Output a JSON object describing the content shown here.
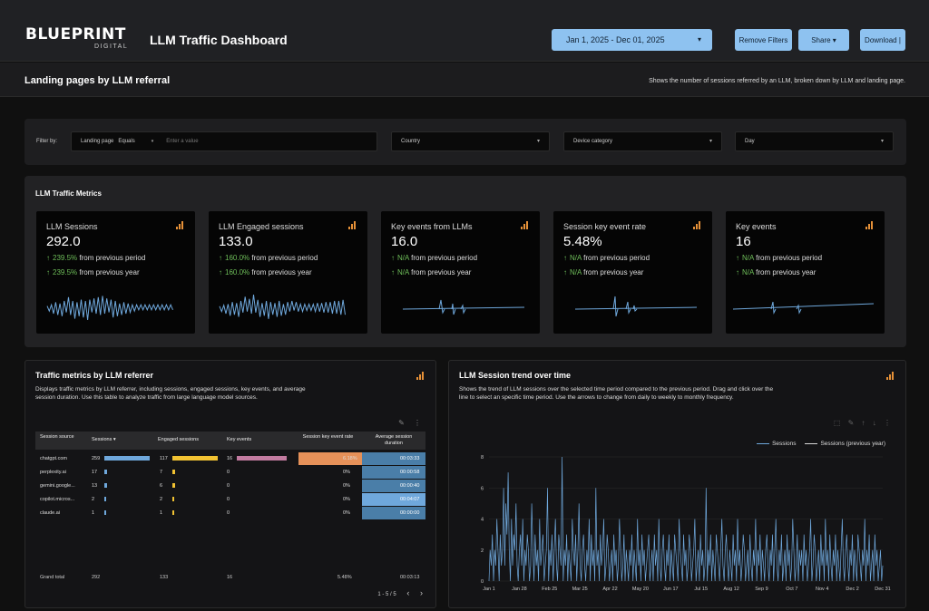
{
  "header": {
    "logo_name": "BLUEPRINT",
    "logo_sub": "DIGITAL",
    "dashboard_title": "LLM Traffic Dashboard",
    "date_range": "Jan 1, 2025 - Dec 01, 2025",
    "buttons": {
      "remove_filters": "Remove Filters",
      "share": "Share ▾",
      "download": "Download |"
    }
  },
  "subheader": {
    "title": "Landing pages by LLM referral",
    "description": "Shows the number of sessions referred by an LLM, broken down by LLM and landing page."
  },
  "filters": {
    "label": "Filter by:",
    "landing_page": {
      "label": "Landing page",
      "operator": "Equals",
      "placeholder": "Enter a value"
    },
    "country": "Country",
    "device_category": "Device category",
    "day": "Day"
  },
  "metrics": {
    "title": "LLM Traffic Metrics",
    "cards": [
      {
        "label": "LLM Sessions",
        "value": "292.0",
        "prev_period": "239.5%",
        "prev_year": "239.5%"
      },
      {
        "label": "LLM Engaged sessions",
        "value": "133.0",
        "prev_period": "160.0%",
        "prev_year": "160.0%"
      },
      {
        "label": "Key events from LLMs",
        "value": "16.0",
        "prev_period": "N/A",
        "prev_year": "N/A"
      },
      {
        "label": "Session key event rate",
        "value": "5.48%",
        "prev_period": "N/A",
        "prev_year": "N/A"
      },
      {
        "label": "Key events",
        "value": "16",
        "prev_period": "N/A",
        "prev_year": "N/A"
      }
    ],
    "period_text": "from previous period",
    "year_text": "from previous year"
  },
  "table_panel": {
    "title": "Traffic metrics by LLM referrer",
    "description_lines": [
      "Displays traffic metrics by LLM referrer, including sessions, engaged sessions, key events, and average",
      "session duration. Use this table to analyze traffic from large language model sources."
    ],
    "columns": [
      "Session source",
      "Sessions ▾",
      "Engaged sessions",
      "Key events",
      "Session key event rate",
      "Average session duration"
    ],
    "rows": [
      {
        "source": "chatgpt.com",
        "sessions": "259",
        "engaged": "117",
        "key_events": "16",
        "rate": "6.18%",
        "duration": "00:03:33"
      },
      {
        "source": "perplexity.ai",
        "sessions": "17",
        "engaged": "7",
        "key_events": "0",
        "rate": "0%",
        "duration": "00:00:58"
      },
      {
        "source": "gemini.google...",
        "sessions": "13",
        "engaged": "6",
        "key_events": "0",
        "rate": "0%",
        "duration": "00:00:40"
      },
      {
        "source": "copilot.micros...",
        "sessions": "2",
        "engaged": "2",
        "key_events": "0",
        "rate": "0%",
        "duration": "00:04:07"
      },
      {
        "source": "claude.ai",
        "sessions": "1",
        "engaged": "1",
        "key_events": "0",
        "rate": "0%",
        "duration": "00:00:00"
      }
    ],
    "footer": {
      "label": "Grand total",
      "sessions": "292",
      "engaged": "133",
      "key_events": "16",
      "rate": "5.48%",
      "duration": "00:03:13"
    },
    "pager": "1 - 5 / 5"
  },
  "chart_panel": {
    "title": "LLM Session trend over time",
    "description_lines": [
      "Shows the trend of LLM sessions over the selected time period compared to the previous period. Drag and click over the",
      "line to select an specific time period. Use the arrows to change from daily to weekly to monthly frequency."
    ]
  },
  "chart_data": {
    "type": "line",
    "x_tick_labels": [
      "Jan 1",
      "Jan 28",
      "Feb 25",
      "Mar 25",
      "Apr 22",
      "May 20",
      "Jun 17",
      "Jul 15",
      "Aug 12",
      "Sep 9",
      "Oct 7",
      "Nov 4",
      "Dec 2",
      "Dec 31"
    ],
    "y_ticks": [
      0,
      2,
      4,
      6,
      8
    ],
    "ylim": [
      0,
      8
    ],
    "series": [
      {
        "name": "Sessions",
        "color": "#6fa8dc",
        "values": [
          0,
          2,
          1,
          3,
          0,
          2,
          1,
          4,
          2,
          0,
          3,
          1,
          2,
          6,
          1,
          5,
          3,
          7,
          2,
          0,
          4,
          1,
          3,
          2,
          5,
          1,
          0,
          2,
          3,
          1,
          4,
          0,
          2,
          1,
          3,
          2,
          0,
          1,
          5,
          2,
          0,
          3,
          1,
          2,
          0,
          4,
          1,
          2,
          3,
          0,
          1,
          2,
          6,
          0,
          2,
          1,
          3,
          0,
          2,
          4,
          1,
          0,
          3,
          2,
          1,
          8,
          0,
          2,
          1,
          3,
          0,
          2,
          1,
          0,
          4,
          2,
          1,
          3,
          0,
          2,
          5,
          1,
          0,
          2,
          3,
          1,
          0,
          2,
          1,
          4,
          0,
          3,
          1,
          2,
          0,
          6,
          1,
          2,
          0,
          3,
          1,
          2,
          4,
          0,
          1,
          3,
          2,
          0,
          1,
          2,
          0,
          3,
          1,
          2,
          0,
          1,
          4,
          2,
          0,
          1,
          3,
          0,
          2,
          1,
          0,
          2,
          1,
          3,
          0,
          2,
          1,
          0,
          4,
          1,
          2,
          0,
          3,
          1,
          2,
          0,
          1,
          2,
          3,
          0,
          1,
          2,
          0,
          3,
          1,
          2,
          0,
          4,
          1,
          0,
          2,
          3,
          1,
          0,
          2,
          1,
          3,
          0,
          2,
          1,
          0,
          3,
          2,
          1,
          0,
          4,
          2,
          1,
          0,
          3,
          1,
          2,
          0,
          1,
          3,
          2,
          0,
          1,
          2,
          4,
          0,
          1,
          2,
          0,
          3,
          1,
          2,
          0,
          1,
          6,
          0,
          2,
          1,
          3,
          0,
          2,
          1,
          0,
          3,
          2,
          1,
          0,
          2,
          4,
          1,
          0,
          2,
          3,
          1,
          0,
          2,
          1,
          0,
          3,
          1,
          2,
          0,
          4,
          1,
          2,
          0,
          1,
          3,
          2,
          0,
          1,
          2,
          0,
          3,
          1,
          0,
          2,
          1,
          4,
          0,
          2,
          1,
          3,
          0,
          2,
          1,
          0,
          2,
          3,
          1,
          0,
          2,
          1,
          3,
          0,
          2,
          4,
          1,
          0,
          2,
          1,
          3,
          0,
          1,
          2,
          0,
          3,
          1,
          2,
          0,
          1,
          4,
          2,
          0,
          1,
          3,
          0,
          2,
          1,
          2,
          0,
          3,
          1,
          2,
          0,
          1,
          2,
          4,
          0,
          1,
          3,
          2,
          0,
          1,
          2,
          0,
          3,
          1,
          2,
          0,
          4,
          1,
          2,
          0,
          3,
          1,
          0,
          2,
          1,
          3,
          0,
          2,
          1,
          0,
          2,
          4,
          1,
          0,
          2,
          3,
          1,
          0,
          2,
          1,
          3,
          0,
          2,
          1,
          0,
          3,
          2,
          1,
          0,
          2,
          1,
          4,
          0,
          2,
          1,
          3,
          0,
          1,
          2,
          0,
          3,
          1,
          2,
          0,
          1,
          2,
          0,
          1
        ]
      },
      {
        "name": "Sessions (previous year)",
        "color": "#d8d8d8",
        "values": []
      }
    ]
  },
  "sparklines": [
    [
      1,
      3,
      2,
      5,
      4,
      6,
      3,
      7,
      5,
      4,
      8,
      6,
      5,
      9,
      4,
      7,
      6,
      8,
      5,
      10,
      6,
      4,
      7,
      5,
      8,
      6,
      9,
      5,
      7,
      4,
      6,
      8,
      5,
      7,
      3,
      6,
      4,
      5,
      3,
      4,
      2,
      3,
      2,
      2,
      2,
      2,
      2,
      2,
      2,
      2,
      2,
      2,
      2,
      2,
      2,
      2,
      2,
      2,
      2,
      2
    ],
    [
      1,
      4,
      2,
      6,
      3,
      8,
      5,
      7,
      4,
      9,
      6,
      5,
      10,
      4,
      8,
      6,
      12,
      5,
      7,
      9,
      4,
      8,
      6,
      11,
      5,
      7,
      4,
      9,
      6,
      8,
      3,
      7,
      5,
      4,
      6,
      3,
      5,
      4,
      3,
      4,
      3,
      3,
      3,
      3,
      3,
      4,
      4,
      4,
      4,
      5,
      5,
      5,
      5,
      6,
      6,
      6,
      6,
      7,
      7,
      7
    ],
    [
      0,
      0,
      0,
      0,
      0,
      0,
      0,
      0,
      0,
      0,
      0,
      0,
      0,
      0,
      0,
      0,
      0,
      0,
      0,
      0,
      0,
      0,
      0,
      0,
      0,
      0,
      0,
      0,
      0,
      0,
      0,
      0,
      0,
      0,
      0,
      0,
      0,
      0,
      0,
      0,
      0,
      0,
      0,
      0,
      0,
      0,
      0,
      0,
      0,
      0,
      0,
      0,
      0,
      0,
      0,
      0,
      0,
      0,
      0,
      0
    ],
    [
      0,
      0,
      0,
      0,
      0,
      0,
      0,
      0,
      0,
      0,
      0,
      0,
      0,
      0,
      0,
      0,
      0,
      0,
      0,
      0,
      0,
      0,
      0,
      0,
      0,
      0,
      0,
      0,
      0,
      0,
      0,
      0,
      0,
      0,
      0,
      0,
      0,
      0,
      0,
      0,
      0,
      0,
      0,
      0,
      0,
      0,
      0,
      0,
      0,
      0,
      0,
      0,
      0,
      0,
      0,
      0,
      0,
      0,
      0,
      0
    ],
    [
      0,
      0,
      0,
      0,
      0,
      0,
      0,
      0,
      0,
      0,
      0,
      0,
      0,
      0,
      0,
      0,
      0,
      0,
      0,
      0,
      0,
      0,
      0,
      0,
      0,
      0,
      0,
      0,
      0,
      0,
      0,
      0,
      0,
      0,
      0,
      0,
      0,
      0,
      0,
      0,
      0,
      0,
      0,
      0,
      0,
      0,
      0,
      0,
      0,
      0,
      0,
      0,
      0,
      0,
      0,
      0,
      0,
      0,
      0,
      0
    ]
  ],
  "colors": {
    "accent_blue": "#8ec2f0",
    "positive_green": "#6fbf5a",
    "bar_sessions": "#6fa8dc",
    "bar_engaged": "#f1c232",
    "bar_key_events": "#c27ba0",
    "heat_rate": "#e69159",
    "heat_duration": "#4a7ea8",
    "heat_duration_high": "#6fa8dc",
    "icon_orange": "#e69138"
  }
}
